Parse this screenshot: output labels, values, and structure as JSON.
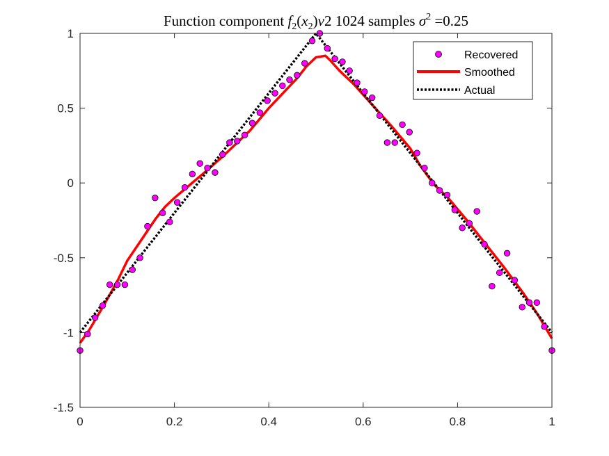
{
  "chart_data": {
    "type": "line",
    "title": {
      "main": "Function component ",
      "math_f": "f",
      "math_f_sub": "2",
      "math_open": "(",
      "math_x": "x",
      "math_x_sub": "2",
      "math_close": ")",
      "math_v": "v",
      "rest": "2 1024 samples ",
      "sigma": "σ",
      "sigma_sup": "2",
      "tail": " =0.25"
    },
    "xlim": [
      0,
      1
    ],
    "ylim": [
      -1.5,
      1
    ],
    "x_ticks": [
      0,
      0.2,
      0.4,
      0.6,
      0.8,
      1
    ],
    "x_tick_labels": [
      "0",
      "0.2",
      "0.4",
      "0.6",
      "0.8",
      "1"
    ],
    "y_ticks": [
      -1.5,
      -1,
      -0.5,
      0,
      0.5,
      1
    ],
    "y_tick_labels": [
      "-1.5",
      "-1",
      "-0.5",
      "0",
      "0.5",
      "1"
    ],
    "grid": false,
    "legend_position": "top-right",
    "series": [
      {
        "name": "Recovered",
        "style": "markers",
        "color": "#ff00ff",
        "edge_color": "#000000",
        "x": [
          0.0,
          0.016,
          0.032,
          0.048,
          0.063,
          0.079,
          0.095,
          0.111,
          0.127,
          0.143,
          0.159,
          0.175,
          0.19,
          0.206,
          0.222,
          0.238,
          0.254,
          0.27,
          0.286,
          0.302,
          0.317,
          0.333,
          0.349,
          0.365,
          0.381,
          0.397,
          0.413,
          0.429,
          0.444,
          0.46,
          0.476,
          0.492,
          0.508,
          0.524,
          0.54,
          0.556,
          0.571,
          0.587,
          0.603,
          0.619,
          0.635,
          0.651,
          0.667,
          0.683,
          0.698,
          0.714,
          0.73,
          0.746,
          0.762,
          0.778,
          0.794,
          0.81,
          0.825,
          0.841,
          0.857,
          0.873,
          0.889,
          0.905,
          0.921,
          0.937,
          0.952,
          0.968,
          0.984,
          1.0
        ],
        "y": [
          -1.12,
          -1.01,
          -0.9,
          -0.82,
          -0.68,
          -0.68,
          -0.68,
          -0.58,
          -0.5,
          -0.29,
          -0.1,
          -0.2,
          -0.26,
          -0.13,
          -0.03,
          0.06,
          0.13,
          0.1,
          0.07,
          0.19,
          0.27,
          0.28,
          0.32,
          0.4,
          0.47,
          0.55,
          0.6,
          0.65,
          0.69,
          0.72,
          0.8,
          0.95,
          1.0,
          0.9,
          0.83,
          0.81,
          0.75,
          0.67,
          0.61,
          0.57,
          0.45,
          0.27,
          0.27,
          0.39,
          0.34,
          0.2,
          0.1,
          0.0,
          -0.05,
          -0.08,
          -0.18,
          -0.3,
          -0.27,
          -0.19,
          -0.41,
          -0.69,
          -0.6,
          -0.47,
          -0.65,
          -0.83,
          -0.8,
          -0.8,
          -0.96,
          -1.12
        ]
      },
      {
        "name": "Smoothed",
        "style": "solid",
        "color": "#ff0000",
        "x": [
          0.0,
          0.02,
          0.05,
          0.08,
          0.1,
          0.13,
          0.16,
          0.18,
          0.2,
          0.23,
          0.26,
          0.3,
          0.33,
          0.36,
          0.4,
          0.43,
          0.46,
          0.48,
          0.5,
          0.52,
          0.53,
          0.55,
          0.58,
          0.62,
          0.66,
          0.7,
          0.72,
          0.75,
          0.78,
          0.82,
          0.86,
          0.9,
          0.94,
          0.97,
          1.0
        ],
        "y": [
          -1.07,
          -0.98,
          -0.82,
          -0.65,
          -0.52,
          -0.38,
          -0.24,
          -0.16,
          -0.1,
          -0.02,
          0.06,
          0.17,
          0.26,
          0.35,
          0.5,
          0.6,
          0.7,
          0.78,
          0.84,
          0.85,
          0.82,
          0.75,
          0.66,
          0.52,
          0.38,
          0.23,
          0.12,
          -0.01,
          -0.1,
          -0.25,
          -0.41,
          -0.57,
          -0.74,
          -0.88,
          -1.04
        ]
      },
      {
        "name": "Actual",
        "style": "dotted",
        "color": "#000000",
        "x": [
          0.0,
          0.5,
          1.0
        ],
        "y": [
          -1.0,
          1.0,
          -1.0
        ]
      }
    ]
  }
}
